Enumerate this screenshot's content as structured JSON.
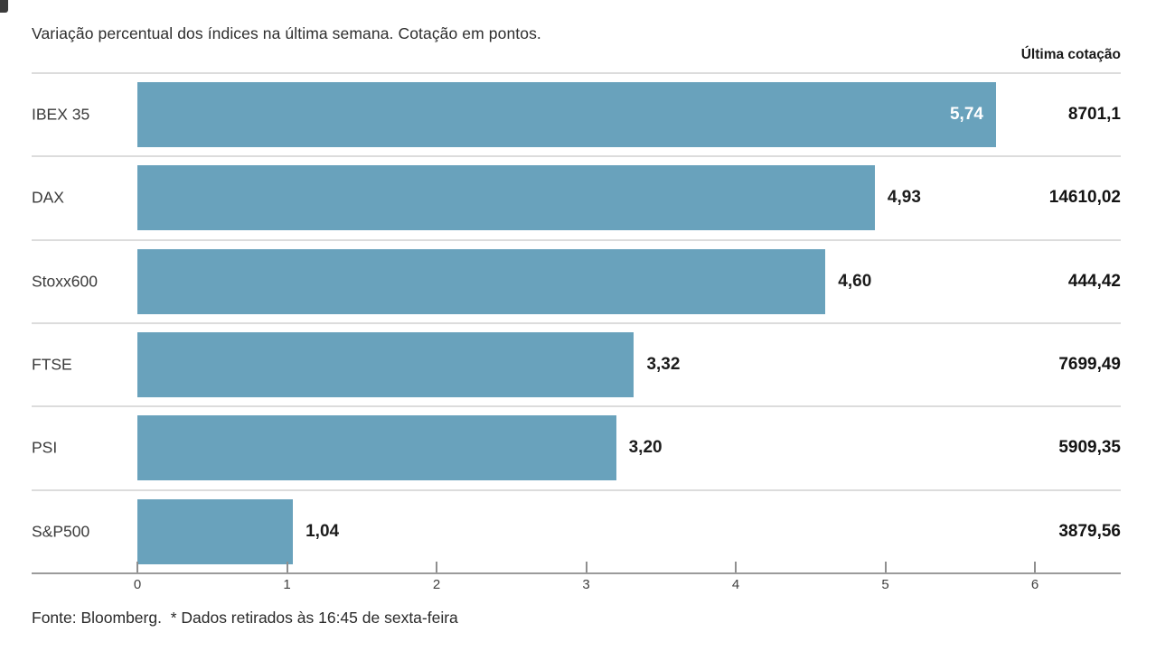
{
  "chart_data": {
    "type": "bar",
    "orientation": "horizontal",
    "title": "Variação percentual dos índices na última semana. Cotação em pontos.",
    "right_column_header": "Última cotação",
    "categories": [
      "IBEX 35",
      "DAX",
      "Stoxx600",
      "FTSE",
      "PSI",
      "S&P500"
    ],
    "values": [
      5.74,
      4.93,
      4.6,
      3.32,
      3.2,
      1.04
    ],
    "rows": [
      {
        "label": "IBEX 35",
        "value": 5.74,
        "value_label": "5,74",
        "quote": "8701,1",
        "value_inside": true
      },
      {
        "label": "DAX",
        "value": 4.93,
        "value_label": "4,93",
        "quote": "14610,02",
        "value_inside": false
      },
      {
        "label": "Stoxx600",
        "value": 4.6,
        "value_label": "4,60",
        "quote": "444,42",
        "value_inside": false
      },
      {
        "label": "FTSE",
        "value": 3.32,
        "value_label": "3,32",
        "quote": "7699,49",
        "value_inside": false
      },
      {
        "label": "PSI",
        "value": 3.2,
        "value_label": "3,20",
        "quote": "5909,35",
        "value_inside": false
      },
      {
        "label": "S&P500",
        "value": 1.04,
        "value_label": "1,04",
        "quote": "3879,56",
        "value_inside": false
      }
    ],
    "x_ticks": [
      "0",
      "1",
      "2",
      "3",
      "4",
      "5",
      "6"
    ],
    "xlim": [
      0,
      6.574
    ],
    "xlabel": "",
    "ylabel": "",
    "grid": false,
    "legend": false,
    "bar_color": "#69a2bc",
    "value_inside_color": "#ffffff",
    "value_outside_color": "#1c1c1c",
    "source_note": "Fonte: Bloomberg.  * Dados retirados às 16:45 de sexta-feira"
  }
}
